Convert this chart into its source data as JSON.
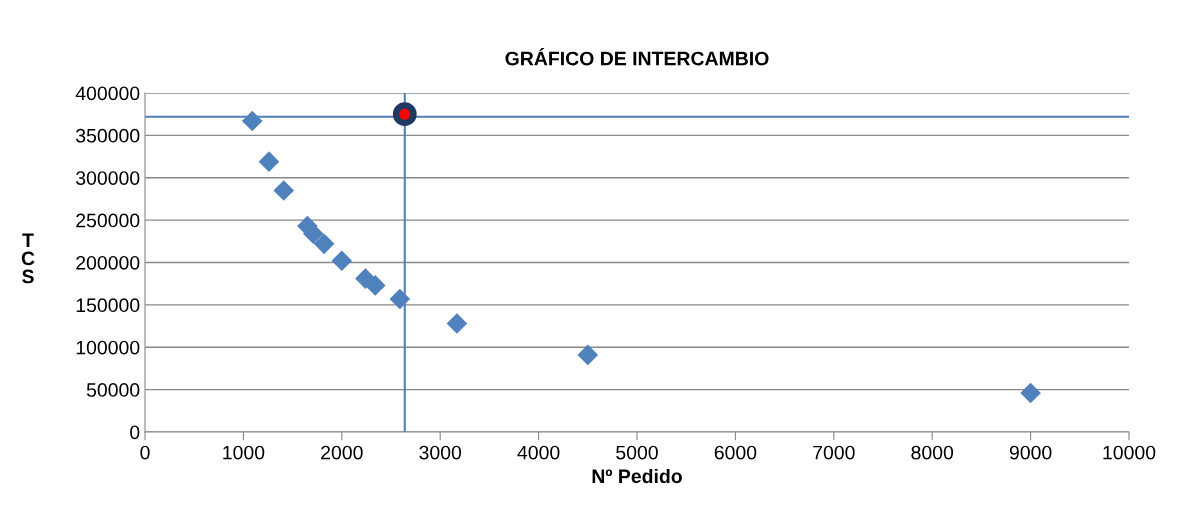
{
  "chart_data": {
    "type": "scatter",
    "title": "GRÁFICO DE INTERCAMBIO",
    "xlabel": "Nº Pedido",
    "ylabel": "TCS",
    "series": [
      {
        "color": "#4f81bd",
        "marker": "diamond",
        "x": [
          1090,
          1260,
          1410,
          1650,
          1710,
          1820,
          2000,
          2240,
          2340,
          2590,
          3170,
          4500,
          9000
        ],
        "values": [
          367000,
          319000,
          285000,
          243000,
          234000,
          222000,
          202000,
          181000,
          173000,
          157000,
          128000,
          91000,
          46000
        ]
      },
      {
        "color": "#ff0000",
        "marker": "circle",
        "x": [
          2640
        ],
        "values": [
          375000
        ]
      }
    ],
    "ref_lines": [
      {
        "axis": "y",
        "value": 372000,
        "color": "#4f81bd"
      },
      {
        "axis": "x",
        "value": 2640,
        "color": "#4f81bd"
      }
    ],
    "xlim": [
      0,
      10000
    ],
    "xticks": [
      0,
      1000,
      2000,
      3000,
      4000,
      5000,
      6000,
      7000,
      8000,
      9000,
      10000
    ],
    "ylim": [
      0,
      400000
    ],
    "yticks": [
      0,
      50000,
      100000,
      150000,
      200000,
      250000,
      300000,
      350000,
      400000
    ],
    "grid": "y",
    "legend": false
  }
}
